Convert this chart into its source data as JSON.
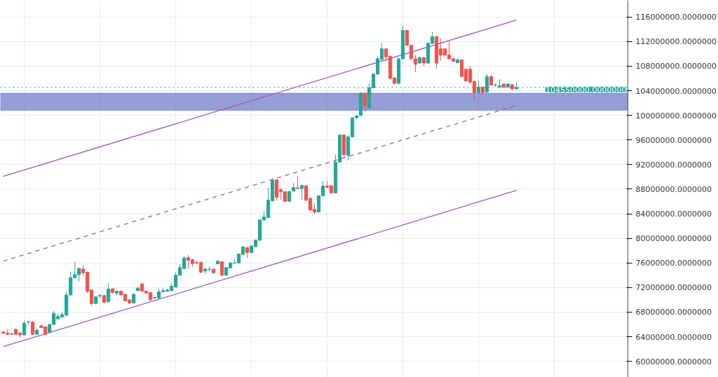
{
  "chart_data": {
    "type": "candlestick",
    "categories": [
      null,
      null,
      null,
      null,
      null,
      null,
      null,
      null,
      null,
      null,
      null,
      null,
      null,
      null,
      null,
      null,
      null,
      null,
      null,
      null,
      null,
      null,
      null,
      null,
      null,
      null,
      null,
      null,
      null,
      null,
      null,
      null,
      null,
      null,
      null,
      null,
      null,
      null,
      null,
      null,
      null,
      null,
      null,
      null,
      null,
      null,
      null,
      null,
      null,
      null,
      null,
      null,
      null,
      null,
      null,
      null,
      null,
      null,
      null,
      null,
      null,
      null,
      null,
      null,
      null,
      null,
      null,
      null,
      null,
      null,
      null,
      null,
      null,
      null,
      null,
      null,
      null,
      null,
      null,
      null,
      null,
      null,
      null,
      null,
      null,
      null,
      null,
      null,
      null,
      null,
      null,
      null,
      null,
      null,
      null,
      null,
      null,
      null,
      null,
      null,
      null,
      null,
      null,
      null,
      null,
      null,
      null,
      null,
      null,
      null,
      null,
      null,
      null,
      null,
      null,
      null,
      null,
      null,
      null,
      null,
      null,
      null,
      null,
      null,
      null,
      null,
      null,
      null,
      null,
      null,
      null,
      null,
      null,
      null,
      null,
      null,
      null,
      null,
      null,
      null,
      null,
      null,
      null,
      null,
      null,
      null,
      null,
      null,
      null
    ],
    "ohlc": [
      [
        64800000,
        64900000,
        64500000,
        64600000
      ],
      [
        64600000,
        65200000,
        64300000,
        64400000
      ],
      [
        64400000,
        64600000,
        64300000,
        64500000
      ],
      [
        65200000,
        65300000,
        64300000,
        64400000
      ],
      [
        64600000,
        64700000,
        63900000,
        64300000
      ],
      [
        64300000,
        66600000,
        64200000,
        66200000
      ],
      [
        66400000,
        66600000,
        65900000,
        66450000
      ],
      [
        66400000,
        66500000,
        64300000,
        64400000
      ],
      [
        64400000,
        65400000,
        64300000,
        65050000
      ],
      [
        65800000,
        65900000,
        65400000,
        65500000
      ],
      [
        65600000,
        65700000,
        64200000,
        64400000
      ],
      [
        64700000,
        66100000,
        64600000,
        66000000
      ],
      [
        66000000,
        68200000,
        65900000,
        67800000
      ],
      [
        66900000,
        67800000,
        66800000,
        67300000
      ],
      [
        67200000,
        68000000,
        67100000,
        67600000
      ],
      [
        67500000,
        71400000,
        67400000,
        70800000
      ],
      [
        70800000,
        74600000,
        70700000,
        73600000
      ],
      [
        73600000,
        76200000,
        73500000,
        74100000
      ],
      [
        74100000,
        75300000,
        73000000,
        75100000
      ],
      [
        75000000,
        75600000,
        73900000,
        74400000
      ],
      [
        74500000,
        74600000,
        71100000,
        71400000
      ],
      [
        71600000,
        71700000,
        69000000,
        69400000
      ],
      [
        69400000,
        70600000,
        69300000,
        70500000
      ],
      [
        70600000,
        70900000,
        70300000,
        70700000
      ],
      [
        70700000,
        70800000,
        69500000,
        69600000
      ],
      [
        69700000,
        72700000,
        69600000,
        71750000
      ],
      [
        71800000,
        71900000,
        71100000,
        71200000
      ],
      [
        71100000,
        71600000,
        70700000,
        71400000
      ],
      [
        71400000,
        71500000,
        70700000,
        70800000
      ],
      [
        70900000,
        71000000,
        69700000,
        69850000
      ],
      [
        70000000,
        70100000,
        69300000,
        69500000
      ],
      [
        69500000,
        71000000,
        69400000,
        70900000
      ],
      [
        71500000,
        72100000,
        71400000,
        71900000
      ],
      [
        72600000,
        72700000,
        71300000,
        71400000
      ],
      [
        71400000,
        71500000,
        71000000,
        71100000
      ],
      [
        71200000,
        71300000,
        69900000,
        70000000
      ],
      [
        70300000,
        70500000,
        70100000,
        70350000
      ],
      [
        70300000,
        71800000,
        70200000,
        71300000
      ],
      [
        71300000,
        71900000,
        71200000,
        71500000
      ],
      [
        71400000,
        71800000,
        71300000,
        71600000
      ],
      [
        71500000,
        72600000,
        71400000,
        72200000
      ],
      [
        72100000,
        74500000,
        72000000,
        74000000
      ],
      [
        74000000,
        75800000,
        73900000,
        75250000
      ],
      [
        75100000,
        77100000,
        75000000,
        76800000
      ],
      [
        76850000,
        77300000,
        75000000,
        76450000
      ],
      [
        76500000,
        76700000,
        75400000,
        75900000
      ],
      [
        76050000,
        76400000,
        75800000,
        76000000
      ],
      [
        76100000,
        76200000,
        74300000,
        74500000
      ],
      [
        74700000,
        75200000,
        74200000,
        75000000
      ],
      [
        74950000,
        75400000,
        74600000,
        75000000
      ],
      [
        75000000,
        75100000,
        74300000,
        74400000
      ],
      [
        75850000,
        76400000,
        75800000,
        76300000
      ],
      [
        76200000,
        76300000,
        73900000,
        74000000
      ],
      [
        74000000,
        75300000,
        73900000,
        75250000
      ],
      [
        75200000,
        76100000,
        75100000,
        76000000
      ],
      [
        75950000,
        76600000,
        75900000,
        76000000
      ],
      [
        76000000,
        77500000,
        75900000,
        77450000
      ],
      [
        77400000,
        78700000,
        77300000,
        78600000
      ],
      [
        78500000,
        78600000,
        76800000,
        77700000
      ],
      [
        77700000,
        78800000,
        77600000,
        78750000
      ],
      [
        78650000,
        79800000,
        78600000,
        79700000
      ],
      [
        79700000,
        83100000,
        79600000,
        83000000
      ],
      [
        83000000,
        84400000,
        82900000,
        83450000
      ],
      [
        83400000,
        88200000,
        83300000,
        86200000
      ],
      [
        86100000,
        89800000,
        86000000,
        89500000
      ],
      [
        89500000,
        89600000,
        86100000,
        86700000
      ],
      [
        87900000,
        88200000,
        86300000,
        87600000
      ],
      [
        87600000,
        87700000,
        85900000,
        86000000
      ],
      [
        86050000,
        87800000,
        85900000,
        87600000
      ],
      [
        87700000,
        89000000,
        87600000,
        88250000
      ],
      [
        88200000,
        90100000,
        88000000,
        88100000
      ],
      [
        88100000,
        88700000,
        86300000,
        88600000
      ],
      [
        88550000,
        88600000,
        86100000,
        86200000
      ],
      [
        86500000,
        86600000,
        84500000,
        84600000
      ],
      [
        84700000,
        85700000,
        84000000,
        84300000
      ],
      [
        84300000,
        87000000,
        84200000,
        86900000
      ],
      [
        86900000,
        89300000,
        86800000,
        88500000
      ],
      [
        88500000,
        89300000,
        88200000,
        88300000
      ],
      [
        88550000,
        88600000,
        87300000,
        87400000
      ],
      [
        87400000,
        93600000,
        87300000,
        92400000
      ],
      [
        92400000,
        96900000,
        92300000,
        96800000
      ],
      [
        96800000,
        96900000,
        93000000,
        93600000
      ],
      [
        93500000,
        96800000,
        92700000,
        96500000
      ],
      [
        96500000,
        99700000,
        96400000,
        99600000
      ],
      [
        99600000,
        100100000,
        99500000,
        99900000
      ],
      [
        100000000,
        103700000,
        99900000,
        103600000
      ],
      [
        103600000,
        103700000,
        100600000,
        101550000
      ],
      [
        101250000,
        105200000,
        101100000,
        104500000
      ],
      [
        104500000,
        106800000,
        104400000,
        106700000
      ],
      [
        106700000,
        109600000,
        106600000,
        109200000
      ],
      [
        109100000,
        111750000,
        109000000,
        110800000
      ],
      [
        110800000,
        110900000,
        108900000,
        109500000
      ],
      [
        109600000,
        109700000,
        105900000,
        106000000
      ],
      [
        106100000,
        106200000,
        105000000,
        105200000
      ],
      [
        105200000,
        109300000,
        105100000,
        109200000
      ],
      [
        109200000,
        114600000,
        109100000,
        113800000
      ],
      [
        113800000,
        113900000,
        111300000,
        111400000
      ],
      [
        111400000,
        111500000,
        109100000,
        109200000
      ],
      [
        109200000,
        109800000,
        107000000,
        108300000
      ],
      [
        108500000,
        109500000,
        108400000,
        109400000
      ],
      [
        109400000,
        109500000,
        108000000,
        108500000
      ],
      [
        108500000,
        111800000,
        108400000,
        111750000
      ],
      [
        111700000,
        113600000,
        111600000,
        112800000
      ],
      [
        112800000,
        112900000,
        107500000,
        108500000
      ],
      [
        110800000,
        112500000,
        108900000,
        109800000
      ],
      [
        110800000,
        110900000,
        109700000,
        109800000
      ],
      [
        109800000,
        112000000,
        109100000,
        109200000
      ],
      [
        109200000,
        109300000,
        108700000,
        108800000
      ],
      [
        108550000,
        109300000,
        108500000,
        109000000
      ],
      [
        109000000,
        109100000,
        106200000,
        106300000
      ],
      [
        107500000,
        107600000,
        105500000,
        105600000
      ],
      [
        107500000,
        108000000,
        105100000,
        105400000
      ],
      [
        105500000,
        105600000,
        102400000,
        103700000
      ],
      [
        103700000,
        105700000,
        103600000,
        104600000
      ],
      [
        104600000,
        104700000,
        103600000,
        103700000
      ],
      [
        103800000,
        106700000,
        103700000,
        106300000
      ],
      [
        106300000,
        106600000,
        104800000,
        104900000
      ],
      [
        104900000,
        105200000,
        104600000,
        104950000
      ],
      [
        104600000,
        105900000,
        104500000,
        104800000
      ],
      [
        105100000,
        105200000,
        104500000,
        104600000
      ],
      [
        104600000,
        105200000,
        104500000,
        105100000
      ],
      [
        105000000,
        105100000,
        104100000,
        104300000
      ],
      [
        104300000,
        105300000,
        104200000,
        104550000
      ],
      null,
      null,
      null,
      null,
      null,
      null,
      null,
      null,
      null,
      null,
      null,
      null,
      null,
      null,
      null,
      null,
      null,
      null,
      null,
      null,
      null,
      null,
      null,
      null,
      null,
      null
    ],
    "colors": [
      "#ef5350",
      "#ef5350",
      "#26a69a",
      "#ef5350",
      "#ef5350",
      "#26a69a",
      "#26a69a",
      "#ef5350",
      "#26a69a",
      "#ef5350",
      "#ef5350",
      "#26a69a",
      "#26a69a",
      "#26a69a",
      "#26a69a",
      "#26a69a",
      "#26a69a",
      "#26a69a",
      "#26a69a",
      "#ef5350",
      "#ef5350",
      "#ef5350",
      "#26a69a",
      "#26a69a",
      "#ef5350",
      "#26a69a",
      "#ef5350",
      "#26a69a",
      "#ef5350",
      "#ef5350",
      "#ef5350",
      "#26a69a",
      "#26a69a",
      "#ef5350",
      "#ef5350",
      "#ef5350",
      "#26a69a",
      "#26a69a",
      "#26a69a",
      "#26a69a",
      "#26a69a",
      "#26a69a",
      "#26a69a",
      "#26a69a",
      "#ef5350",
      "#ef5350",
      "#ef5350",
      "#ef5350",
      "#26a69a",
      "#26a69a",
      "#ef5350",
      "#26a69a",
      "#ef5350",
      "#26a69a",
      "#26a69a",
      "#26a69a",
      "#26a69a",
      "#26a69a",
      "#ef5350",
      "#26a69a",
      "#26a69a",
      "#26a69a",
      "#26a69a",
      "#26a69a",
      "#26a69a",
      "#ef5350",
      "#ef5350",
      "#ef5350",
      "#26a69a",
      "#26a69a",
      "#ef5350",
      "#26a69a",
      "#ef5350",
      "#ef5350",
      "#ef5350",
      "#26a69a",
      "#26a69a",
      "#ef5350",
      "#ef5350",
      "#26a69a",
      "#26a69a",
      "#ef5350",
      "#26a69a",
      "#26a69a",
      "#26a69a",
      "#26a69a",
      "#ef5350",
      "#26a69a",
      "#26a69a",
      "#26a69a",
      "#26a69a",
      "#ef5350",
      "#ef5350",
      "#ef5350",
      "#26a69a",
      "#26a69a",
      "#ef5350",
      "#ef5350",
      "#ef5350",
      "#26a69a",
      "#ef5350",
      "#26a69a",
      "#26a69a",
      "#ef5350",
      "#ef5350",
      "#ef5350",
      "#ef5350",
      "#ef5350",
      "#26a69a",
      "#ef5350",
      "#ef5350",
      "#ef5350",
      "#ef5350",
      "#26a69a",
      "#ef5350",
      "#26a69a",
      "#ef5350",
      "#26a69a",
      "#26a69a",
      "#ef5350",
      "#26a69a",
      "#ef5350",
      "#26a69a",
      null,
      null,
      null,
      null,
      null,
      null,
      null,
      null,
      null,
      null,
      null,
      null,
      null,
      null,
      null,
      null,
      null,
      null,
      null,
      null,
      null,
      null,
      null,
      null,
      null,
      null
    ],
    "series": [
      {
        "type": "line",
        "color": "#9b59b6",
        "line_style": "solid",
        "values": [
          90100000,
          null,
          null,
          null,
          null,
          null,
          null,
          null,
          null,
          null,
          null,
          null,
          null,
          null,
          null,
          null,
          null,
          null,
          null,
          null,
          null,
          null,
          null,
          null,
          null,
          null,
          null,
          null,
          null,
          null,
          null,
          null,
          null,
          null,
          null,
          null,
          null,
          null,
          null,
          null,
          null,
          null,
          null,
          null,
          null,
          null,
          null,
          null,
          null,
          null,
          null,
          null,
          null,
          null,
          null,
          null,
          null,
          null,
          null,
          null,
          null,
          null,
          null,
          null,
          null,
          null,
          null,
          null,
          null,
          null,
          null,
          null,
          null,
          null,
          null,
          null,
          null,
          null,
          null,
          null,
          null,
          null,
          null,
          null,
          null,
          null,
          null,
          null,
          null,
          null,
          null,
          null,
          null,
          null,
          null,
          null,
          null,
          null,
          null,
          null,
          null,
          null,
          null,
          null,
          null,
          null,
          null,
          null,
          null,
          null,
          null,
          null,
          null,
          null,
          null,
          null,
          null,
          null,
          null,
          null,
          null,
          null,
          115500000,
          null,
          null,
          null,
          null,
          null,
          null,
          null,
          null,
          null,
          null,
          null,
          null,
          null,
          null,
          null,
          null,
          null,
          null,
          null,
          null,
          null,
          null,
          null,
          null,
          null,
          null
        ]
      },
      {
        "type": "line",
        "color": "#9b59b6",
        "line_style": "dashed",
        "values": [
          76300000,
          null,
          null,
          null,
          null,
          null,
          null,
          null,
          null,
          null,
          null,
          null,
          null,
          null,
          null,
          null,
          null,
          null,
          null,
          null,
          null,
          null,
          null,
          null,
          null,
          null,
          null,
          null,
          null,
          null,
          null,
          null,
          null,
          null,
          null,
          null,
          null,
          null,
          null,
          null,
          null,
          null,
          null,
          null,
          null,
          null,
          null,
          null,
          null,
          null,
          null,
          null,
          null,
          null,
          null,
          null,
          null,
          null,
          null,
          null,
          null,
          null,
          null,
          null,
          null,
          null,
          null,
          null,
          null,
          null,
          null,
          null,
          null,
          null,
          null,
          null,
          null,
          null,
          null,
          null,
          null,
          null,
          null,
          null,
          null,
          null,
          null,
          null,
          null,
          null,
          null,
          null,
          null,
          null,
          null,
          null,
          null,
          null,
          null,
          null,
          null,
          null,
          null,
          null,
          null,
          null,
          null,
          null,
          null,
          null,
          null,
          null,
          null,
          null,
          null,
          null,
          null,
          null,
          null,
          null,
          null,
          null,
          101600000,
          null,
          null,
          null,
          null,
          null,
          null,
          null,
          null,
          null,
          null,
          null,
          null,
          null,
          null,
          null,
          null,
          null,
          null,
          null,
          null,
          null,
          null,
          null,
          null,
          null,
          null
        ]
      },
      {
        "type": "line",
        "color": "#9b59b6",
        "line_style": "solid",
        "values": [
          62400000,
          null,
          null,
          null,
          null,
          null,
          null,
          null,
          null,
          null,
          null,
          null,
          null,
          null,
          null,
          null,
          null,
          null,
          null,
          null,
          null,
          null,
          null,
          null,
          null,
          null,
          null,
          null,
          null,
          null,
          null,
          null,
          null,
          null,
          null,
          null,
          null,
          null,
          null,
          null,
          null,
          null,
          null,
          null,
          null,
          null,
          null,
          null,
          null,
          null,
          null,
          null,
          null,
          null,
          null,
          null,
          null,
          null,
          null,
          null,
          null,
          null,
          null,
          null,
          null,
          null,
          null,
          null,
          null,
          null,
          null,
          null,
          null,
          null,
          null,
          null,
          null,
          null,
          null,
          null,
          null,
          null,
          null,
          null,
          null,
          null,
          null,
          null,
          null,
          null,
          null,
          null,
          null,
          null,
          null,
          null,
          null,
          null,
          null,
          null,
          null,
          null,
          null,
          null,
          null,
          null,
          null,
          null,
          null,
          null,
          null,
          null,
          null,
          null,
          null,
          null,
          null,
          null,
          null,
          null,
          null,
          null,
          87800000,
          null,
          null,
          null,
          null,
          null,
          null,
          null,
          null,
          null,
          null,
          null,
          null,
          null,
          null,
          null,
          null,
          null,
          null,
          null,
          null,
          null,
          null,
          null,
          null,
          null,
          null
        ]
      }
    ],
    "ref_lines": [
      {
        "axis": "y",
        "value": 104550000,
        "label": "104550000.0000000",
        "color": "#26a69a",
        "line_style": "dotted"
      }
    ],
    "bands": [
      {
        "axis": "y",
        "from": 100800000,
        "to": 103600000,
        "color": "#5c6bc0"
      }
    ],
    "ylim": [
      57400000,
      118700000
    ],
    "yticks": [
      {
        "value": 60000000,
        "label": "60000000.0000000"
      },
      {
        "value": 64000000,
        "label": "64000000.0000000"
      },
      {
        "value": 68000000,
        "label": "68000000.0000000"
      },
      {
        "value": 72000000,
        "label": "72000000.0000000"
      },
      {
        "value": 76000000,
        "label": "76000000.0000000"
      },
      {
        "value": 80000000,
        "label": "80000000.0000000"
      },
      {
        "value": 84000000,
        "label": "84000000.0000000"
      },
      {
        "value": 88000000,
        "label": "88000000.0000000"
      },
      {
        "value": 92000000,
        "label": "92000000.0000000"
      },
      {
        "value": 96000000,
        "label": "96000000.0000000"
      },
      {
        "value": 100000000,
        "label": "100000000.0000000"
      },
      {
        "value": 104000000,
        "label": "104000000.0000000"
      },
      {
        "value": 108000000,
        "label": "108000000.0000000"
      },
      {
        "value": 112000000,
        "label": "112000000.0000000"
      },
      {
        "value": 116000000,
        "label": "116000000.0000000"
      }
    ],
    "tick_labels": "y",
    "grid": true
  }
}
